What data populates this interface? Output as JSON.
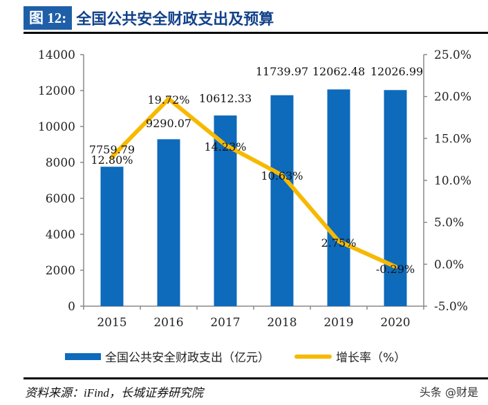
{
  "header": {
    "figure_number": "图 12:",
    "title": "全国公共安全财政支出及预算"
  },
  "chart_data": {
    "type": "bar+line",
    "title": "全国公共安全财政支出及预算",
    "categories": [
      "2015",
      "2016",
      "2017",
      "2018",
      "2019",
      "2020"
    ],
    "series": [
      {
        "name": "全国公共安全财政支出（亿元）",
        "type": "bar",
        "axis": "left",
        "color": "#0e6abb",
        "values": [
          7759.79,
          9290.07,
          10612.33,
          11739.97,
          12062.48,
          12026.99
        ],
        "labels": [
          "7759.79",
          "9290.07",
          "10612.33",
          "11739.97",
          "12062.48",
          "12026.99"
        ]
      },
      {
        "name": "增长率（%）",
        "type": "line",
        "axis": "right",
        "color": "#f7b900",
        "values": [
          12.8,
          19.72,
          14.23,
          10.63,
          2.75,
          -0.29
        ],
        "labels": [
          "12.80%",
          "19.72%",
          "14.23%",
          "10.63%",
          "2.75%",
          "-0.29%"
        ]
      }
    ],
    "left_axis": {
      "ylim": [
        0,
        14000
      ],
      "ticks": [
        "0",
        "2000",
        "4000",
        "6000",
        "8000",
        "10000",
        "12000",
        "14000"
      ]
    },
    "right_axis": {
      "ylim": [
        -5,
        25
      ],
      "ticks": [
        "-5.0%",
        "0.0%",
        "5.0%",
        "10.0%",
        "15.0%",
        "20.0%",
        "25.0%"
      ]
    },
    "grid": false,
    "legend": "bottom"
  },
  "legend": {
    "bar": "全国公共安全财政支出（亿元）",
    "line": "增长率（%）"
  },
  "footer": {
    "source": "资料来源：iFind，长城证券研究院",
    "watermark": "头条 @财是"
  }
}
